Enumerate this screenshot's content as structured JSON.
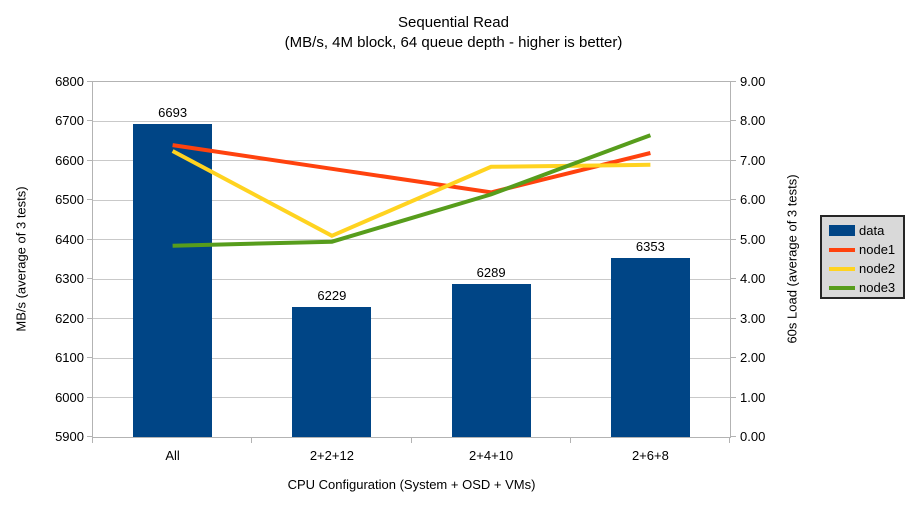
{
  "title": {
    "line1": "Sequential Read",
    "line2": "(MB/s, 4M block, 64 queue depth - higher is better)"
  },
  "colors": {
    "bar": "#004586",
    "node1": "#ff420e",
    "node2": "#ffd320",
    "node3": "#579d1c",
    "grid": "#c9c9c9",
    "axis": "#b3b3b3",
    "legend_bg": "#d9d9d9",
    "legend_border": "#262626"
  },
  "chart_data": {
    "type": "bar+line combo (dual axis)",
    "categories": [
      "All",
      "2+2+12",
      "2+4+10",
      "2+6+8"
    ],
    "series": [
      {
        "name": "data",
        "type": "bar",
        "axis": "left",
        "color": "#004586",
        "values": [
          6693,
          6229,
          6289,
          6353
        ]
      },
      {
        "name": "node1",
        "type": "line",
        "axis": "right",
        "color": "#ff420e",
        "values": [
          7.4,
          6.8,
          6.2,
          7.2
        ]
      },
      {
        "name": "node2",
        "type": "line",
        "axis": "right",
        "color": "#ffd320",
        "values": [
          7.25,
          5.1,
          6.85,
          6.9
        ]
      },
      {
        "name": "node3",
        "type": "line",
        "axis": "right",
        "color": "#579d1c",
        "values": [
          4.85,
          4.95,
          6.15,
          7.65
        ]
      }
    ],
    "left_axis": {
      "label": "MB/s (average of 3 tests)",
      "min": 5900,
      "max": 6800,
      "step": 100,
      "tick_labels": [
        "6800",
        "6700",
        "6600",
        "6500",
        "6400",
        "6300",
        "6200",
        "6100",
        "6000",
        "5900"
      ]
    },
    "right_axis": {
      "label": "60s Load (average of 3 tests)",
      "min": 0,
      "max": 9,
      "step": 1,
      "tick_labels": [
        "9.00",
        "8.00",
        "7.00",
        "6.00",
        "5.00",
        "4.00",
        "3.00",
        "2.00",
        "1.00",
        "0.00"
      ]
    },
    "x_axis": {
      "label": "CPU Configuration (System + OSD + VMs)"
    },
    "grid": true,
    "legend_position": "right"
  },
  "legend": {
    "items": [
      {
        "label": "data",
        "swatch": "bar"
      },
      {
        "label": "node1",
        "swatch": "line"
      },
      {
        "label": "node2",
        "swatch": "line"
      },
      {
        "label": "node3",
        "swatch": "line"
      }
    ]
  }
}
